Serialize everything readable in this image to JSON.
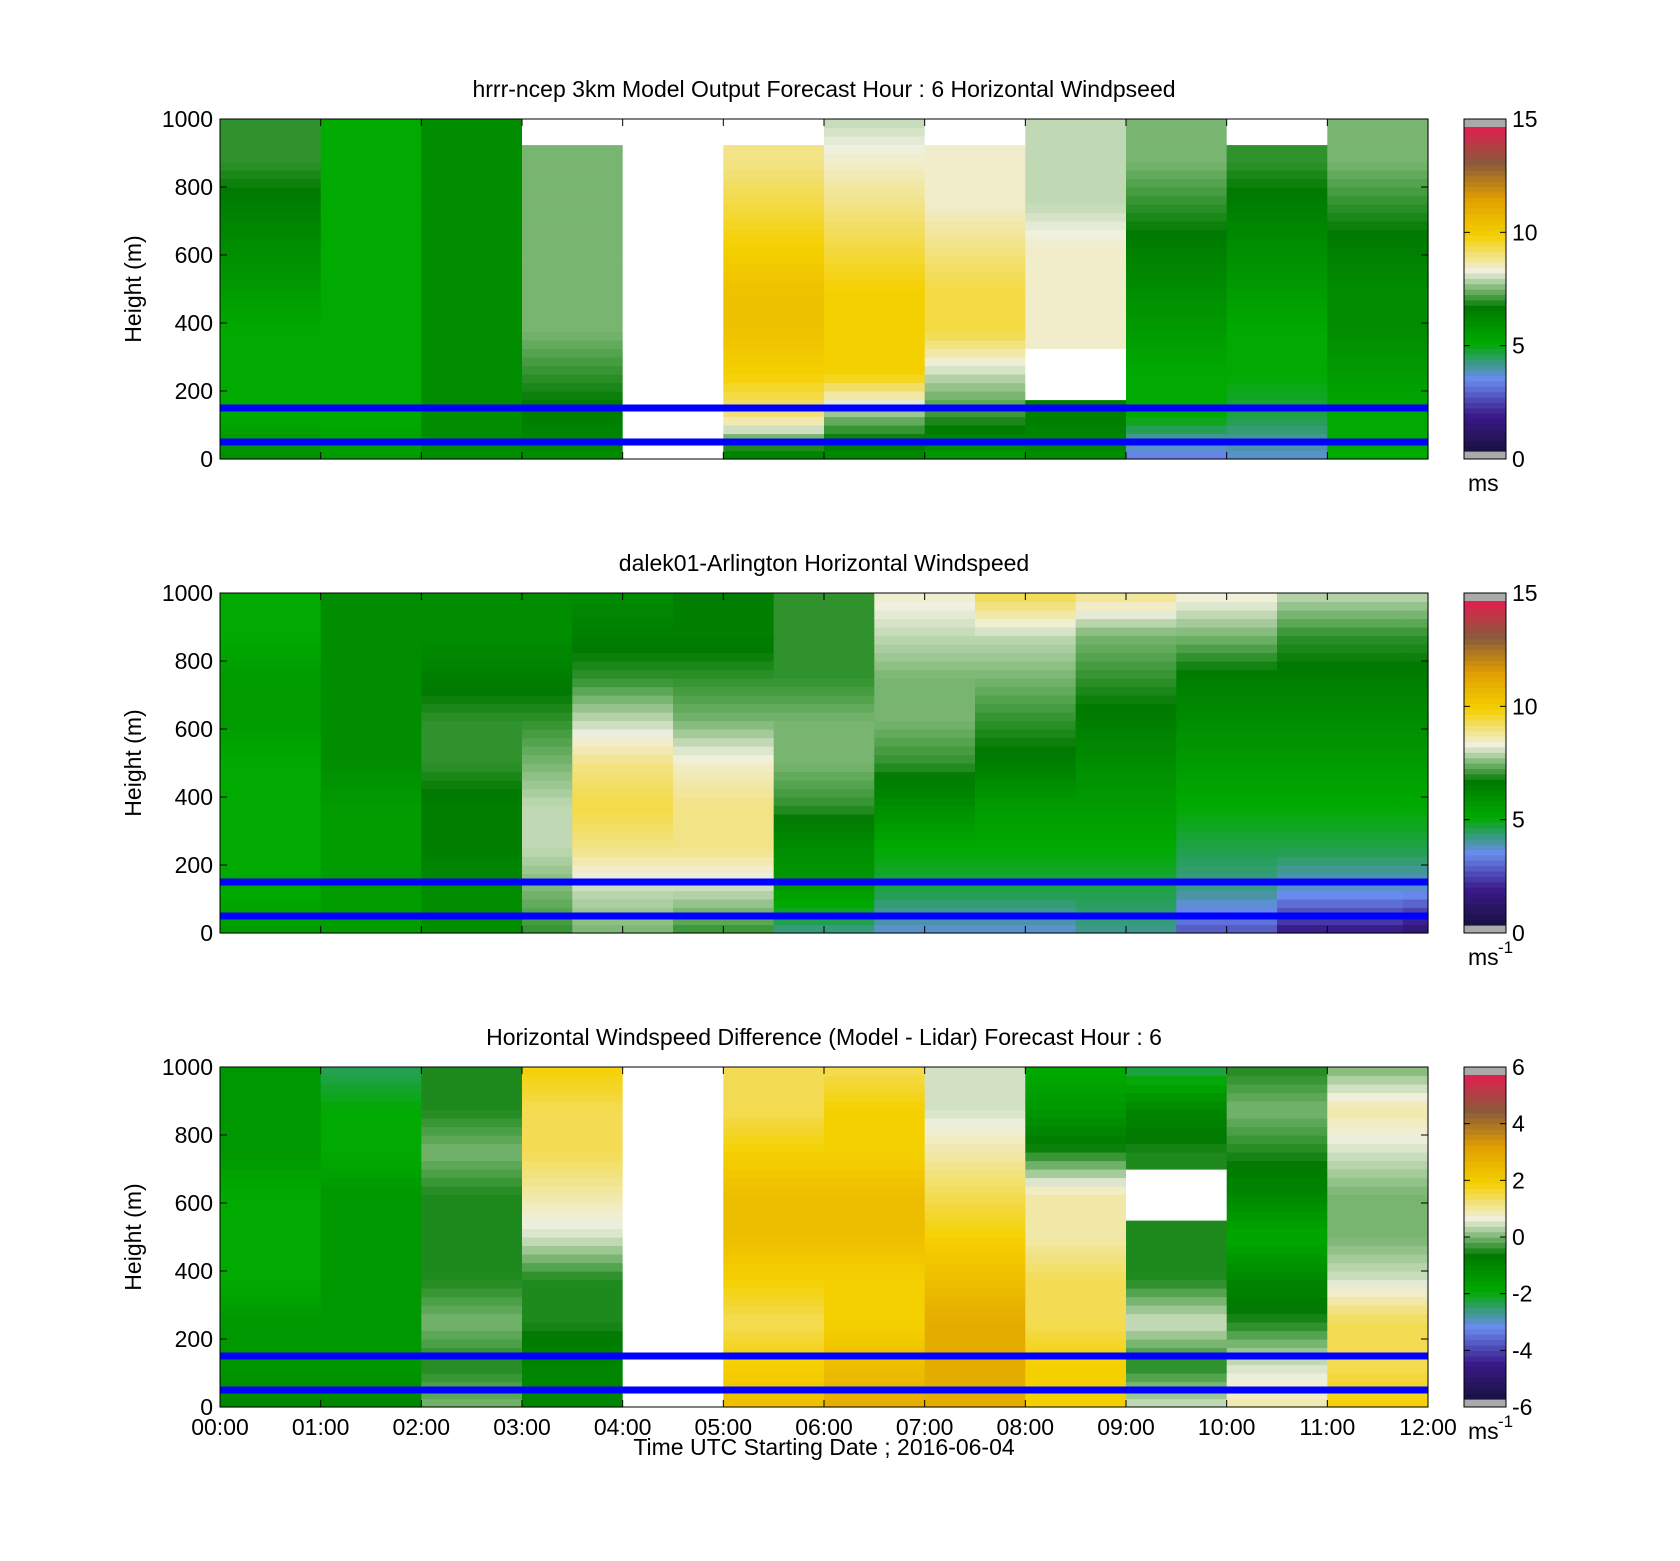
{
  "figure": {
    "xlabel": "Time UTC  Starting Date ; 2016-06-04",
    "time_ticks": [
      "00:00",
      "01:00",
      "02:00",
      "03:00",
      "04:00",
      "05:00",
      "06:00",
      "07:00",
      "08:00",
      "09:00",
      "10:00",
      "11:00",
      "12:00"
    ]
  },
  "colors": {
    "reference_line": "#0000ff",
    "missing": "#ffffff",
    "bad_value": "#aaaaaa",
    "colormap_stops": [
      "#1a1040",
      "#3a1a8a",
      "#6a8cf0",
      "#00aa00",
      "#007a00",
      "#f0f0e0",
      "#f5d000",
      "#e0a000",
      "#8a5a3a",
      "#e02050"
    ]
  },
  "chart_data": [
    {
      "type": "heatmap",
      "title": "hrrr-ncep 3km Model Output   Forecast Hour : 6 Horizontal Windpseed",
      "ylabel": "Height (m)",
      "xlim": [
        "00:00",
        "12:00"
      ],
      "ylim": [
        0,
        1000
      ],
      "yticks": [
        "0",
        "200",
        "400",
        "600",
        "800",
        "1000"
      ],
      "colorbar": {
        "min": 0,
        "max": 15,
        "ticks": [
          "0",
          "5",
          "10",
          "15"
        ],
        "unit": "ms",
        "unit_sup": ""
      },
      "reference_heights_m": [
        50,
        150
      ],
      "grid": false,
      "columns": [
        "00:00",
        "01:00",
        "02:00",
        "03:00",
        "04:00",
        "05:00",
        "06:00",
        "07:00",
        "08:00",
        "09:00",
        "10:00",
        "11:00"
      ],
      "windspeed_profile_ms": [
        {
          "time": "00:00",
          "values": [
            6.0,
            5.0,
            5.0,
            5.0,
            5.5,
            6.0,
            6.5,
            7.0,
            7.0
          ]
        },
        {
          "time": "01:00",
          "values": [
            5.5,
            5.0,
            5.0,
            5.0,
            5.0,
            5.0,
            5.0,
            5.0,
            5.0
          ]
        },
        {
          "time": "02:00",
          "values": [
            6.0,
            6.0,
            6.0,
            6.0,
            6.0,
            6.0,
            6.0,
            6.0,
            6.0
          ]
        },
        {
          "time": "03:00",
          "values": [
            6.0,
            6.5,
            7.0,
            7.5,
            7.5,
            7.5,
            7.5,
            7.5,
            null
          ]
        },
        {
          "time": "04:00",
          "values": [
            null,
            null,
            null,
            null,
            null,
            null,
            null,
            null,
            null
          ]
        },
        {
          "time": "05:00",
          "values": [
            6.0,
            9.0,
            10.0,
            10.5,
            10.5,
            10.0,
            9.5,
            9.0,
            null
          ]
        },
        {
          "time": "06:00",
          "values": [
            6.0,
            7.5,
            10.0,
            10.0,
            10.0,
            9.5,
            9.0,
            8.5,
            8.0
          ]
        },
        {
          "time": "07:00",
          "values": [
            5.5,
            7.0,
            8.0,
            9.5,
            9.5,
            9.0,
            8.5,
            8.5,
            null
          ]
        },
        {
          "time": "08:00",
          "values": [
            6.0,
            6.5,
            null,
            8.5,
            8.5,
            8.5,
            8.0,
            8.0,
            8.0
          ]
        },
        {
          "time": "09:00",
          "values": [
            3.0,
            5.0,
            5.0,
            5.5,
            6.0,
            6.5,
            7.0,
            7.5,
            7.5
          ]
        },
        {
          "time": "10:00",
          "values": [
            3.5,
            4.5,
            5.0,
            5.0,
            5.5,
            6.0,
            6.5,
            7.0,
            null
          ]
        },
        {
          "time": "11:00",
          "values": [
            5.0,
            5.0,
            5.5,
            6.0,
            6.0,
            6.5,
            7.0,
            7.5,
            7.5
          ]
        }
      ]
    },
    {
      "type": "heatmap",
      "title": "dalek01-Arlington  Horizontal Windspeed",
      "ylabel": "Height (m)",
      "xlim": [
        "00:00",
        "12:00"
      ],
      "ylim": [
        0,
        1000
      ],
      "yticks": [
        "0",
        "200",
        "400",
        "600",
        "800",
        "1000"
      ],
      "colorbar": {
        "min": 0,
        "max": 15,
        "ticks": [
          "0",
          "5",
          "10",
          "15"
        ],
        "unit": "ms",
        "unit_sup": "-1"
      },
      "reference_heights_m": [
        50,
        150
      ],
      "grid": false,
      "time_resolution_min": 15,
      "windspeed_profile_ms": [
        {
          "time": "00:00",
          "values": [
            5.5,
            5.0,
            5.0,
            5.0,
            5.0,
            5.5,
            5.5,
            5.0,
            5.0
          ]
        },
        {
          "time": "01:00",
          "values": [
            5.5,
            5.5,
            5.5,
            5.5,
            6.0,
            6.0,
            6.0,
            6.0,
            6.0
          ]
        },
        {
          "time": "02:00",
          "values": [
            6.0,
            6.0,
            6.5,
            6.5,
            7.0,
            7.0,
            6.5,
            6.0,
            6.0
          ]
        },
        {
          "time": "03:00",
          "values": [
            7.0,
            7.5,
            8.0,
            8.0,
            7.5,
            7.0,
            6.5,
            6.0,
            6.0
          ]
        },
        {
          "time": "03:30",
          "values": [
            7.5,
            8.0,
            9.0,
            9.5,
            9.0,
            8.0,
            7.0,
            6.5,
            6.0
          ]
        },
        {
          "time": "04:30",
          "values": [
            7.0,
            8.0,
            9.0,
            9.0,
            8.5,
            7.5,
            7.0,
            6.5,
            6.5
          ]
        },
        {
          "time": "05:30",
          "values": [
            4.0,
            5.5,
            6.0,
            7.0,
            7.5,
            7.5,
            7.0,
            7.0,
            7.0
          ]
        },
        {
          "time": "06:30",
          "values": [
            3.5,
            4.5,
            5.0,
            6.0,
            7.0,
            7.5,
            7.5,
            8.0,
            8.5
          ]
        },
        {
          "time": "07:30",
          "values": [
            3.5,
            4.5,
            5.0,
            5.5,
            6.5,
            7.0,
            7.5,
            8.0,
            9.5
          ]
        },
        {
          "time": "08:30",
          "values": [
            4.0,
            4.5,
            5.0,
            5.5,
            6.0,
            6.5,
            7.0,
            7.5,
            9.0
          ]
        },
        {
          "time": "09:30",
          "values": [
            2.5,
            4.0,
            4.5,
            5.0,
            5.5,
            6.0,
            6.5,
            7.5,
            8.5
          ]
        },
        {
          "time": "10:30",
          "values": [
            1.5,
            3.5,
            4.5,
            5.0,
            5.5,
            6.0,
            6.5,
            7.0,
            8.0
          ]
        },
        {
          "time": "11:45",
          "values": [
            1.0,
            3.5,
            4.5,
            5.0,
            5.5,
            6.0,
            6.5,
            7.0,
            8.0
          ]
        }
      ]
    },
    {
      "type": "heatmap",
      "title": "Horizontal Windspeed Difference (Model - Lidar) Forecast Hour : 6",
      "ylabel": "Height (m)",
      "xlim": [
        "00:00",
        "12:00"
      ],
      "ylim": [
        0,
        1000
      ],
      "yticks": [
        "0",
        "200",
        "400",
        "600",
        "800",
        "1000"
      ],
      "colorbar": {
        "min": -6,
        "max": 6,
        "ticks": [
          "-6",
          "-4",
          "-2",
          "0",
          "2",
          "4",
          "6"
        ],
        "unit": "ms",
        "unit_sup": "-1"
      },
      "reference_heights_m": [
        50,
        150
      ],
      "grid": false,
      "columns": [
        "00:00",
        "01:00",
        "02:00",
        "03:00",
        "04:00",
        "05:00",
        "06:00",
        "07:00",
        "08:00",
        "09:00",
        "10:00",
        "11:00"
      ],
      "difference_profile_ms": [
        {
          "time": "00:00",
          "values": [
            -1.0,
            -1.5,
            -1.5,
            -2.0,
            -2.0,
            -2.0,
            -1.5,
            -1.5,
            -1.5
          ]
        },
        {
          "time": "01:00",
          "values": [
            -1.0,
            -1.5,
            -1.5,
            -1.5,
            -1.5,
            -1.5,
            -2.0,
            -2.0,
            -2.5
          ]
        },
        {
          "time": "02:00",
          "values": [
            0.0,
            -0.5,
            0.0,
            -0.5,
            -0.5,
            -0.5,
            0.0,
            -0.5,
            -0.5
          ]
        },
        {
          "time": "03:00",
          "values": [
            -1.0,
            -1.0,
            -0.5,
            -0.5,
            0.5,
            1.0,
            1.5,
            1.5,
            2.0
          ]
        },
        {
          "time": "04:00",
          "values": [
            null,
            null,
            null,
            null,
            null,
            null,
            null,
            null,
            null
          ]
        },
        {
          "time": "05:00",
          "values": [
            2.5,
            2.0,
            1.5,
            2.0,
            2.5,
            2.5,
            2.0,
            1.5,
            1.5
          ]
        },
        {
          "time": "06:00",
          "values": [
            3.0,
            2.5,
            2.0,
            2.0,
            2.5,
            2.5,
            2.0,
            2.0,
            1.5
          ]
        },
        {
          "time": "07:00",
          "values": [
            3.0,
            3.0,
            3.0,
            2.5,
            2.0,
            1.5,
            1.0,
            0.5,
            0.5
          ]
        },
        {
          "time": "08:00",
          "values": [
            2.0,
            2.0,
            1.5,
            1.5,
            1.0,
            1.0,
            -0.5,
            -1.5,
            -2.0
          ]
        },
        {
          "time": "09:00",
          "values": [
            0.5,
            -0.5,
            0.5,
            -0.5,
            -0.5,
            null,
            -0.5,
            -1.0,
            -2.5
          ]
        },
        {
          "time": "10:00",
          "values": [
            1.0,
            0.5,
            -0.5,
            -1.0,
            -2.0,
            -1.0,
            -0.5,
            0.0,
            -0.5
          ]
        },
        {
          "time": "11:00",
          "values": [
            2.0,
            1.5,
            1.5,
            0.5,
            0.0,
            0.0,
            0.5,
            1.0,
            0.0
          ]
        }
      ]
    }
  ]
}
